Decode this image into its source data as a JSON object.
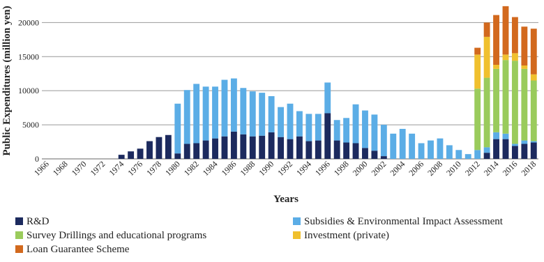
{
  "chart_data": {
    "type": "bar",
    "stacked": true,
    "x_label": "Years",
    "y_label": "Public Expenditures (million yen)",
    "categories": [
      "1966",
      null,
      "1968",
      null,
      "1970",
      null,
      "1972",
      null,
      "1974",
      null,
      "1976",
      null,
      "1978",
      null,
      "1980",
      null,
      "1982",
      null,
      "1984",
      null,
      "1986",
      null,
      "1988",
      null,
      "1990",
      null,
      "1992",
      null,
      "1994",
      null,
      "1996",
      null,
      "1998",
      null,
      "2000",
      null,
      "2002",
      null,
      "2004",
      null,
      "2006",
      null,
      "2008",
      null,
      "2010",
      null,
      "2012",
      null,
      "2014",
      null,
      "2016",
      null,
      "2018"
    ],
    "series": [
      {
        "name": "R&D",
        "color": "#1c2a5e",
        "values": [
          0,
          0,
          0,
          0,
          0,
          0,
          0,
          0,
          600,
          1100,
          1500,
          2600,
          3200,
          3500,
          800,
          2200,
          2300,
          2700,
          3000,
          3300,
          4000,
          3600,
          3300,
          3400,
          3900,
          3200,
          2900,
          3300,
          2600,
          2700,
          6700,
          2700,
          2400,
          2300,
          1600,
          1200,
          400,
          0,
          0,
          0,
          0,
          0,
          0,
          0,
          0,
          0,
          0,
          900,
          2900,
          2900,
          1900,
          2200,
          2400
        ]
      },
      {
        "name": "Subsidies & Environmental Impact Assessment",
        "color": "#5badE6",
        "values": [
          0,
          0,
          0,
          0,
          0,
          0,
          0,
          0,
          0,
          0,
          0,
          0,
          0,
          0,
          7300,
          7900,
          8700,
          7900,
          7600,
          8300,
          7800,
          6800,
          6600,
          6300,
          5300,
          4400,
          5200,
          3700,
          4000,
          3900,
          4500,
          3000,
          3600,
          5700,
          5500,
          5300,
          4600,
          3700,
          4400,
          3700,
          2300,
          2700,
          3000,
          2000,
          1300,
          700,
          1300,
          800,
          1000,
          800,
          300,
          500,
          200
        ]
      },
      {
        "name": "Survey Drillings and educational programs",
        "color": "#9acb5c",
        "values": [
          0,
          0,
          0,
          0,
          0,
          0,
          0,
          0,
          0,
          0,
          0,
          0,
          0,
          0,
          0,
          0,
          0,
          0,
          0,
          0,
          0,
          0,
          0,
          0,
          0,
          0,
          0,
          0,
          0,
          0,
          0,
          0,
          0,
          0,
          0,
          0,
          0,
          0,
          0,
          0,
          0,
          0,
          0,
          0,
          0,
          0,
          9000,
          10200,
          9300,
          10800,
          12200,
          10500,
          8900
        ]
      },
      {
        "name": "Investment (private)",
        "color": "#f0c02e",
        "values": [
          0,
          0,
          0,
          0,
          0,
          0,
          0,
          0,
          0,
          0,
          0,
          0,
          0,
          0,
          0,
          0,
          0,
          0,
          0,
          0,
          0,
          0,
          0,
          0,
          0,
          0,
          0,
          0,
          0,
          0,
          0,
          0,
          0,
          0,
          0,
          0,
          0,
          0,
          0,
          0,
          0,
          0,
          0,
          0,
          0,
          0,
          5000,
          6000,
          600,
          800,
          1100,
          500,
          900
        ]
      },
      {
        "name": "Loan Guarantee Scheme",
        "color": "#d2691e",
        "values": [
          0,
          0,
          0,
          0,
          0,
          0,
          0,
          0,
          0,
          0,
          0,
          0,
          0,
          0,
          0,
          0,
          0,
          0,
          0,
          0,
          0,
          0,
          0,
          0,
          0,
          0,
          0,
          0,
          0,
          0,
          0,
          0,
          0,
          0,
          0,
          0,
          0,
          0,
          0,
          0,
          0,
          0,
          0,
          0,
          0,
          0,
          1000,
          2100,
          7300,
          7100,
          5300,
          5700,
          6700
        ]
      }
    ],
    "ylim": [
      0,
      23000
    ],
    "yticks": [
      0,
      5000,
      10000,
      15000,
      20000
    ],
    "grid": true
  }
}
